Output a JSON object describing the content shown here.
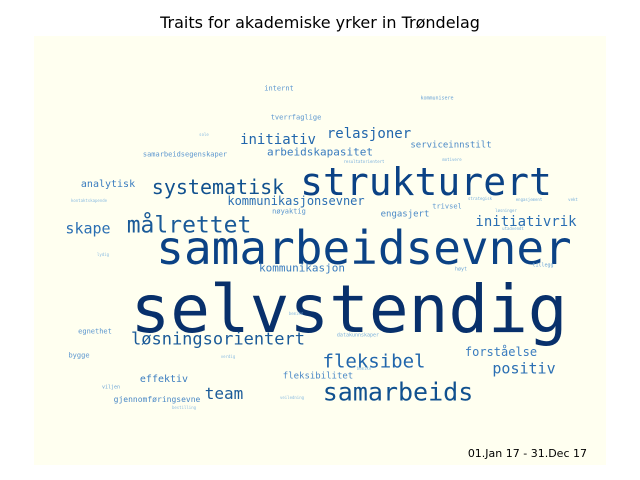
{
  "title": "Traits for akademiske yrker in Trøndelag",
  "date_range": "01.Jan 17 - 31.Dec 17",
  "words": [
    {
      "text": "selvstendig",
      "color": "#08306b"
    },
    {
      "text": "samarbeidsevner",
      "color": "#0b4285"
    },
    {
      "text": "strukturert",
      "color": "#0b4285"
    },
    {
      "text": "samarbeids",
      "color": "#11518f"
    },
    {
      "text": "målrettet",
      "color": "#1a5a98"
    },
    {
      "text": "systematisk",
      "color": "#11518f"
    },
    {
      "text": "fleksibel",
      "color": "#2166ac"
    },
    {
      "text": "løsningsorientert",
      "color": "#1a5a98"
    },
    {
      "text": "team",
      "color": "#1a5a98"
    },
    {
      "text": "positiv",
      "color": "#2b6fb3"
    },
    {
      "text": "skape",
      "color": "#2b6fb3"
    },
    {
      "text": "initiativrik",
      "color": "#2b6fb3"
    },
    {
      "text": "relasjoner",
      "color": "#2166ac"
    },
    {
      "text": "initiativ",
      "color": "#2166ac"
    },
    {
      "text": "forståelse",
      "color": "#3a7cbf"
    },
    {
      "text": "kommunikasjonsevner",
      "color": "#2b6fb3"
    },
    {
      "text": "arbeidskapasitet",
      "color": "#3a7cbf"
    },
    {
      "text": "kommunikasjon",
      "color": "#3a7cbf"
    },
    {
      "text": "analytisk",
      "color": "#3a7cbf"
    },
    {
      "text": "effektiv",
      "color": "#3a7cbf"
    },
    {
      "text": "serviceinnstilt",
      "color": "#4a88c6"
    },
    {
      "text": "engasjert",
      "color": "#4a88c6"
    },
    {
      "text": "fleksibilitet",
      "color": "#4a88c6"
    },
    {
      "text": "gjennomføringsevne",
      "color": "#4a88c6"
    },
    {
      "text": "tverrfaglige",
      "color": "#5b96cf"
    },
    {
      "text": "samarbeidsegenskaper",
      "color": "#5b96cf"
    },
    {
      "text": "internt",
      "color": "#5b96cf"
    },
    {
      "text": "nøyaktig",
      "color": "#5b96cf"
    },
    {
      "text": "trivsel",
      "color": "#5b96cf"
    },
    {
      "text": "egnethet",
      "color": "#5b96cf"
    },
    {
      "text": "bygge",
      "color": "#5b96cf"
    },
    {
      "text": "viljen",
      "color": "#6aa3d6"
    },
    {
      "text": "høyt",
      "color": "#6aa3d6"
    },
    {
      "text": "tillegg",
      "color": "#6aa3d6"
    },
    {
      "text": "kommunisere",
      "color": "#6aa3d6"
    },
    {
      "text": "datakunnskaper",
      "color": "#7ab0dc"
    },
    {
      "text": "strategisk",
      "color": "#7ab0dc"
    },
    {
      "text": "engasjement",
      "color": "#7ab0dc"
    },
    {
      "text": "utadvendt",
      "color": "#7ab0dc"
    },
    {
      "text": "løsninger",
      "color": "#7ab0dc"
    },
    {
      "text": "vekt",
      "color": "#7ab0dc"
    },
    {
      "text": "motivere",
      "color": "#7ab0dc"
    },
    {
      "text": "resultatorientert",
      "color": "#7ab0dc"
    },
    {
      "text": "lydig",
      "color": "#8bbce1"
    },
    {
      "text": "sole",
      "color": "#8bbce1"
    },
    {
      "text": "kontaktskapende",
      "color": "#8bbce1"
    },
    {
      "text": "verdig",
      "color": "#8bbce1"
    },
    {
      "text": "bemike",
      "color": "#8bbce1"
    },
    {
      "text": "bemiks",
      "color": "#8bbce1"
    },
    {
      "text": "bestilling",
      "color": "#8bbce1"
    },
    {
      "text": "veiledning",
      "color": "#8bbce1"
    }
  ]
}
